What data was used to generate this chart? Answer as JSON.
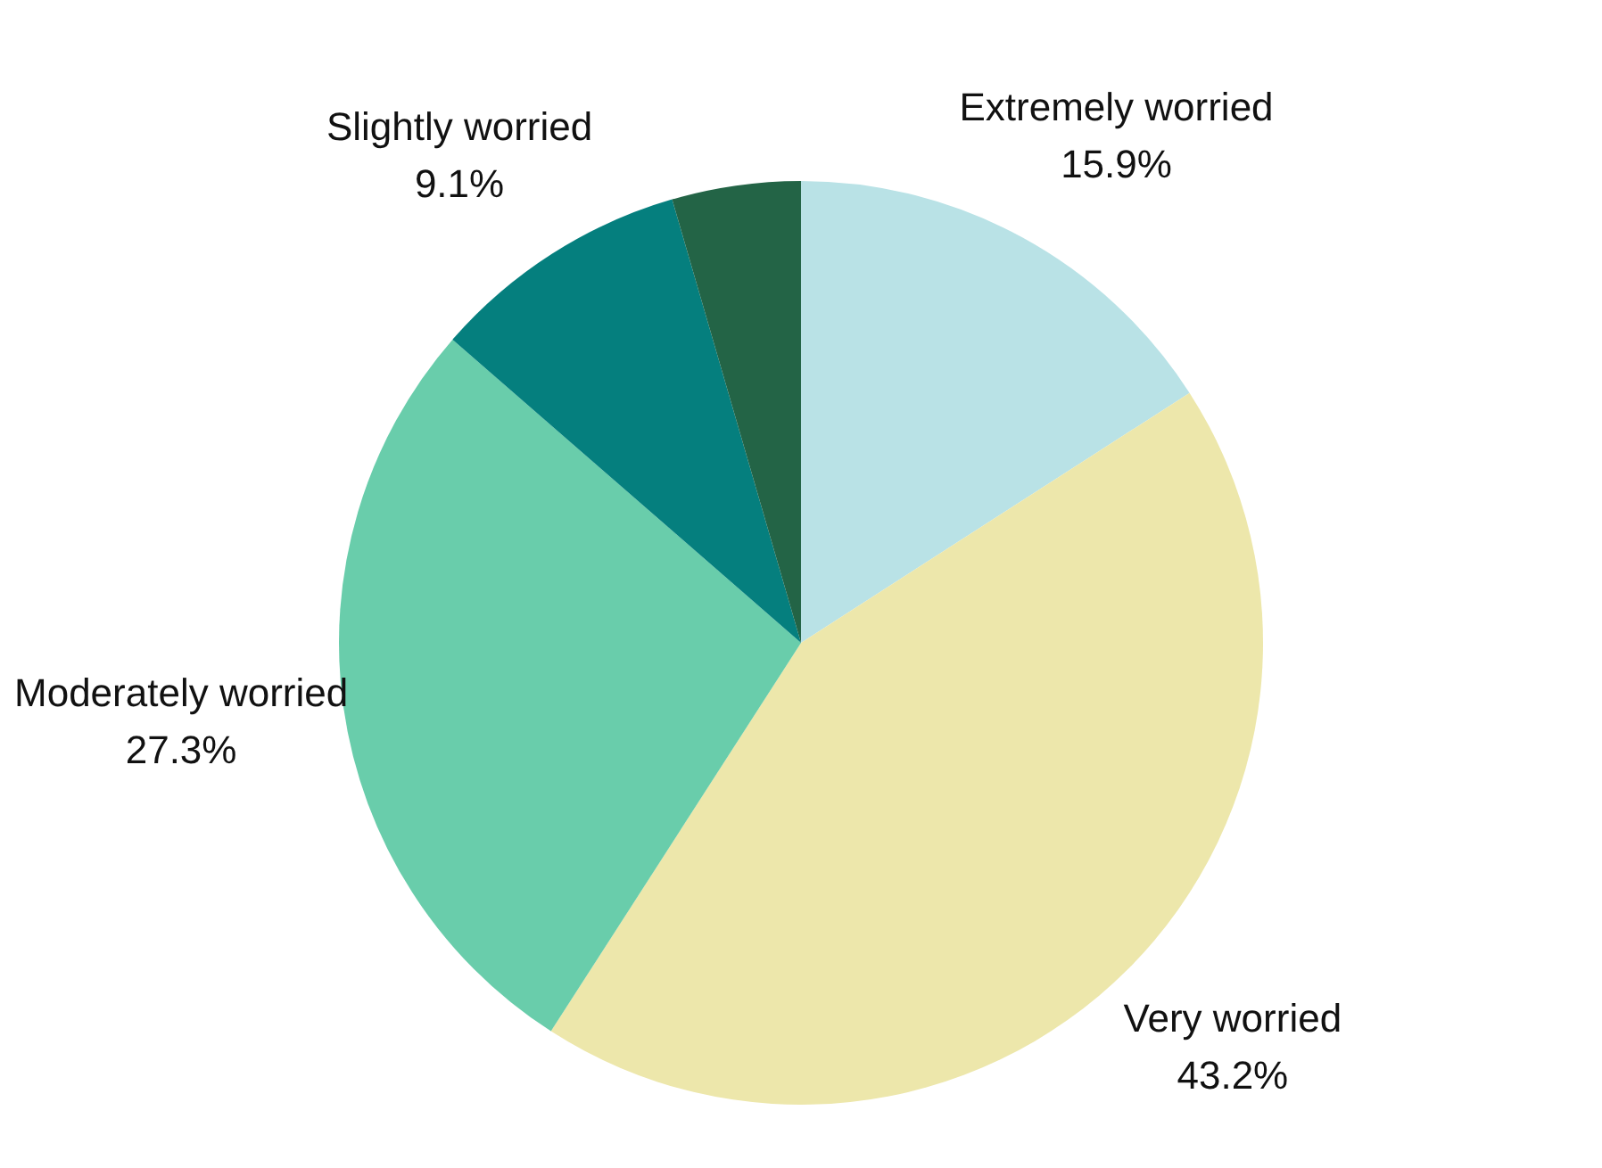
{
  "chart_data": {
    "type": "pie",
    "categories": [
      "Extremely worried",
      "Very worried",
      "Moderately worried",
      "Slightly worried",
      null
    ],
    "values": [
      15.9,
      43.2,
      27.3,
      9.1,
      4.5
    ],
    "value_labels": [
      "15.9%",
      "43.2%",
      "27.3%",
      "9.1%",
      null
    ],
    "colors": [
      "#b9e2e6",
      "#ede7ab",
      "#69cdab",
      "#057f7e",
      "#236446"
    ],
    "legend": false
  }
}
